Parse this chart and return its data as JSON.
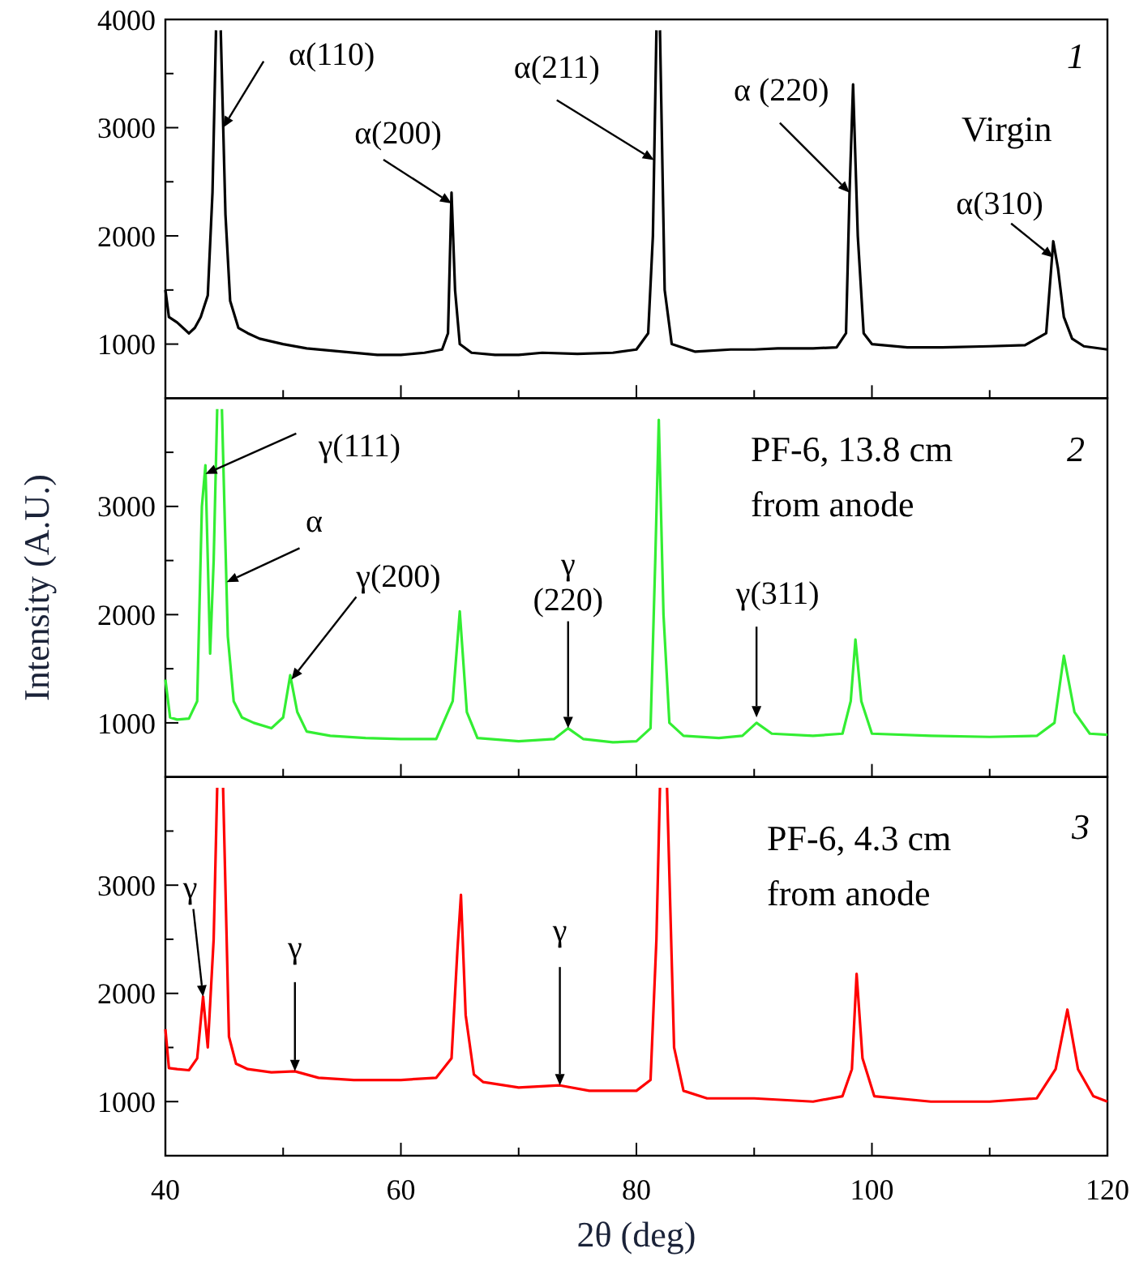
{
  "chart_data": [
    {
      "type": "line",
      "title": "Virgin",
      "subtitle": "1",
      "xlim": [
        40,
        120
      ],
      "xticks": [
        40,
        {
          "value": 50,
          "label": null
        },
        60,
        {
          "value": 70,
          "label": null
        },
        80,
        {
          "value": 90,
          "label": null
        },
        100,
        {
          "value": 110,
          "label": null
        },
        120
      ],
      "ylim": [
        500,
        4000
      ],
      "yticks": [
        1000,
        {
          "value": 1500,
          "label": null
        },
        2000,
        {
          "value": 2500,
          "label": null
        },
        3000,
        {
          "value": 3500,
          "label": null
        },
        4000
      ],
      "tick_labels": "y",
      "x": [
        40,
        40.3,
        41,
        42,
        42.5,
        43,
        43.6,
        44.0,
        44.3,
        44.5,
        44.7,
        45.1,
        45.5,
        46.2,
        47,
        48,
        50,
        52,
        55,
        58,
        60,
        62,
        63.5,
        64.0,
        64.3,
        64.6,
        65.0,
        66,
        68,
        70,
        72,
        75,
        78,
        80,
        81.0,
        81.4,
        81.7,
        81.85,
        82.0,
        82.4,
        83,
        85,
        88,
        90,
        92,
        95,
        97,
        97.8,
        98.1,
        98.4,
        98.8,
        99.3,
        100,
        103,
        106,
        110,
        113,
        114.8,
        115.4,
        115.8,
        116.3,
        117,
        118,
        120
      ],
      "series": [
        {
          "color": "#000000",
          "values": [
            1500,
            1250,
            1200,
            1100,
            1150,
            1250,
            1450,
            2400,
            3900,
            null,
            3900,
            2200,
            1400,
            1150,
            1100,
            1050,
            1000,
            960,
            930,
            900,
            900,
            920,
            950,
            1100,
            2400,
            1500,
            1000,
            920,
            900,
            900,
            920,
            910,
            920,
            950,
            1100,
            2000,
            3900,
            null,
            3900,
            1500,
            1000,
            930,
            950,
            950,
            960,
            960,
            970,
            1100,
            2400,
            3400,
            2000,
            1100,
            1000,
            970,
            970,
            980,
            990,
            1100,
            1950,
            1700,
            1250,
            1050,
            980,
            950
          ]
        }
      ],
      "annotations": [
        {
          "text": "α(110)",
          "x": 44.9,
          "y": 3000
        },
        {
          "text": "α(200)",
          "x": 64.3,
          "y": 2300
        },
        {
          "text": "α(211)",
          "x": 81.5,
          "y": 2700
        },
        {
          "text": "α (220)",
          "x": 98.1,
          "y": 2400
        },
        {
          "text": "α(310)",
          "x": 115.4,
          "y": 1800
        }
      ]
    },
    {
      "type": "line",
      "title": "PF-6, 13.8 cm\nfrom anode",
      "subtitle": "2",
      "ylabel": "Intensity (A.U.)",
      "xlim": [
        40,
        120
      ],
      "xticks": [
        40,
        {
          "value": 50,
          "label": null
        },
        60,
        {
          "value": 70,
          "label": null
        },
        80,
        {
          "value": 90,
          "label": null
        },
        100,
        {
          "value": 110,
          "label": null
        },
        120
      ],
      "ylim": [
        500,
        4000
      ],
      "yticks": [
        1000,
        {
          "value": 1500,
          "label": null
        },
        2000,
        {
          "value": 2500,
          "label": null
        },
        3000,
        {
          "value": 3500,
          "label": null
        }
      ],
      "tick_labels": "y",
      "x": [
        40,
        40.4,
        41,
        42,
        42.7,
        43.1,
        43.4,
        43.8,
        44.1,
        44.4,
        44.6,
        44.8,
        45.3,
        45.8,
        46.5,
        47.5,
        49,
        50,
        50.6,
        51.2,
        52,
        54,
        57,
        60,
        63,
        64.4,
        65.0,
        65.6,
        66.5,
        70,
        73,
        74.2,
        75.5,
        78,
        80,
        81.2,
        81.6,
        81.9,
        82.3,
        82.8,
        84,
        87,
        89,
        90.2,
        91.5,
        95,
        97.5,
        98.2,
        98.6,
        99.1,
        100,
        105,
        110,
        114,
        115.5,
        116.3,
        117.2,
        118.5,
        120
      ],
      "series": [
        {
          "color": "#33ee33",
          "values": [
            1400,
            1050,
            1030,
            1040,
            1200,
            3000,
            3380,
            1640,
            2500,
            3900,
            null,
            3900,
            1800,
            1200,
            1050,
            1000,
            950,
            1050,
            1440,
            1100,
            920,
            880,
            860,
            850,
            850,
            1200,
            2030,
            1100,
            860,
            830,
            850,
            950,
            850,
            820,
            830,
            950,
            2500,
            3800,
            2000,
            1000,
            880,
            860,
            880,
            1000,
            900,
            880,
            900,
            1200,
            1770,
            1200,
            900,
            880,
            870,
            880,
            1000,
            1620,
            1100,
            900,
            890
          ]
        }
      ],
      "annotations": [
        {
          "text": "γ(111)",
          "x": 43.4,
          "y": 3300
        },
        {
          "text": "α",
          "x": 45.2,
          "y": 2300
        },
        {
          "text": "γ(200)",
          "x": 50.7,
          "y": 1400
        },
        {
          "text": "γ\n(220)",
          "x": 74.2,
          "y": 950
        },
        {
          "text": "γ(311)",
          "x": 90.2,
          "y": 1050
        }
      ]
    },
    {
      "type": "line",
      "title": "PF-6, 4.3 cm\nfrom anode",
      "subtitle": "3",
      "xlabel": "2θ (deg)",
      "xlim": [
        40,
        120
      ],
      "xticks": [
        40,
        {
          "value": 50,
          "label": null
        },
        60,
        {
          "value": 70,
          "label": null
        },
        80,
        {
          "value": 90,
          "label": null
        },
        100,
        {
          "value": 110,
          "label": null
        },
        120
      ],
      "ylim": [
        500,
        4000
      ],
      "yticks": [
        1000,
        {
          "value": 1500,
          "label": null
        },
        2000,
        {
          "value": 2500,
          "label": null
        },
        3000,
        {
          "value": 3500,
          "label": null
        }
      ],
      "x": [
        40,
        40.3,
        41,
        42,
        42.7,
        43.2,
        43.6,
        44.1,
        44.4,
        44.65,
        44.9,
        45.4,
        46,
        47,
        49,
        51,
        53,
        56,
        60,
        63,
        64.3,
        64.8,
        65.1,
        65.5,
        66.2,
        67,
        70,
        73.5,
        76,
        80,
        81.2,
        81.7,
        82.0,
        82.3,
        82.6,
        83.2,
        84,
        86,
        90,
        95,
        97.5,
        98.3,
        98.7,
        99.2,
        100.2,
        105,
        110,
        114,
        115.6,
        116.6,
        117.5,
        118.8,
        120
      ],
      "series": [
        {
          "color": "#ff0000",
          "values": [
            1670,
            1310,
            1300,
            1290,
            1400,
            1970,
            1500,
            2500,
            3900,
            null,
            3900,
            1600,
            1350,
            1300,
            1270,
            1280,
            1220,
            1200,
            1200,
            1220,
            1400,
            2400,
            2910,
            1800,
            1250,
            1180,
            1130,
            1150,
            1100,
            1100,
            1200,
            2500,
            3900,
            null,
            3900,
            1500,
            1100,
            1030,
            1030,
            1000,
            1050,
            1300,
            2180,
            1400,
            1050,
            1000,
            1000,
            1030,
            1300,
            1850,
            1300,
            1050,
            1000
          ]
        }
      ],
      "annotations": [
        {
          "text": "γ",
          "x": 43.2,
          "y": 1970
        },
        {
          "text": "γ",
          "x": 51.0,
          "y": 1280
        },
        {
          "text": "γ",
          "x": 73.5,
          "y": 1150
        }
      ]
    }
  ]
}
